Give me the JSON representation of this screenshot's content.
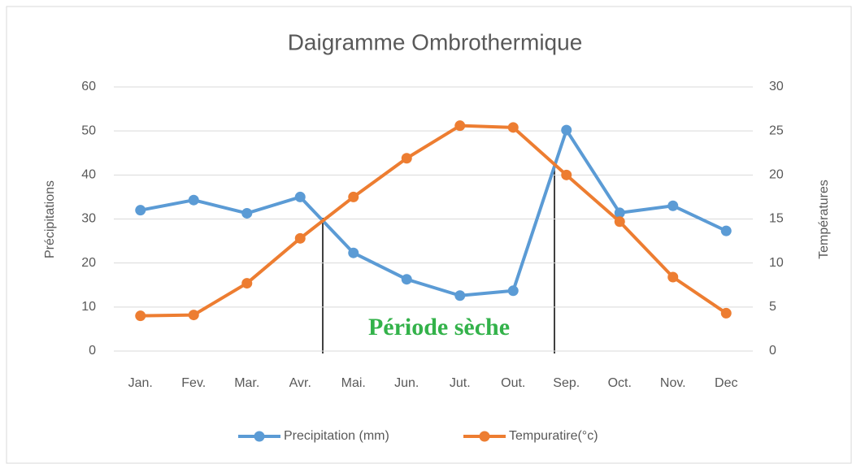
{
  "chart_data": {
    "type": "line",
    "title": "Daigramme Ombrothermique",
    "y_label": "Précipitations",
    "y2_label": "Températures",
    "categories": [
      "Jan.",
      "Fev.",
      "Mar.",
      "Avr.",
      "Mai.",
      "Jun.",
      "Jut.",
      "Out.",
      "Sep.",
      "Oct.",
      "Nov.",
      "Dec"
    ],
    "series": [
      {
        "name": "Precipitation (mm)",
        "color": "#5b9bd5",
        "values": [
          32,
          34.3,
          31.3,
          35,
          22.3,
          16.3,
          12.6,
          13.7,
          50.2,
          31.4,
          33,
          27.3
        ]
      },
      {
        "name": "Tempuratire(°c)",
        "color": "#ed7d31",
        "axis": "y2",
        "values": [
          4.0,
          4.1,
          7.7,
          12.8,
          17.5,
          21.9,
          25.6,
          25.4,
          20,
          14.7,
          8.4,
          4.3
        ]
      }
    ],
    "ylim": [
      0,
      60
    ],
    "yticks": [
      0,
      10,
      20,
      30,
      40,
      50,
      60
    ],
    "y2lim": [
      0,
      30
    ],
    "y2ticks": [
      0,
      5,
      10,
      15,
      20,
      25,
      30
    ],
    "grid": true,
    "legend": "bottom",
    "annotation": "Période sèche"
  }
}
